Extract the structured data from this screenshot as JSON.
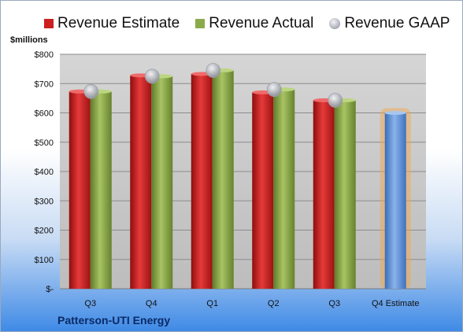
{
  "legend": {
    "estimate_label": "Revenue Estimate",
    "actual_label": "Revenue Actual",
    "gaap_label": "Revenue GAAP"
  },
  "unit_label": "$millions",
  "company": "Patterson-UTI Energy",
  "colors": {
    "estimate": "#cc1f1f",
    "actual": "#8bab4a",
    "gaap": "#b9bcc4",
    "forecast": "#5b8fd6",
    "forecast_glow": "#f5a340"
  },
  "chart_data": {
    "type": "bar",
    "title": "",
    "xlabel": "",
    "ylabel": "$millions",
    "ylim": [
      0,
      800
    ],
    "y_ticks": [
      0,
      100,
      200,
      300,
      400,
      500,
      600,
      700,
      800
    ],
    "y_tick_labels": [
      "$-",
      "$100",
      "$200",
      "$300",
      "$400",
      "$500",
      "$600",
      "$700",
      "$800"
    ],
    "categories": [
      "Q3",
      "Q4",
      "Q1",
      "Q2",
      "Q3",
      "Q4 Estimate"
    ],
    "series": [
      {
        "name": "Revenue Estimate",
        "values": [
          673,
          728,
          733,
          670,
          643,
          null
        ]
      },
      {
        "name": "Revenue Actual",
        "values": [
          673,
          725,
          745,
          680,
          643,
          null
        ]
      },
      {
        "name": "Revenue GAAP",
        "values": [
          673,
          725,
          745,
          680,
          643,
          null
        ]
      }
    ],
    "forecast": {
      "category": "Q4 Estimate",
      "value": 600
    },
    "grid": true,
    "legend_position": "top"
  }
}
